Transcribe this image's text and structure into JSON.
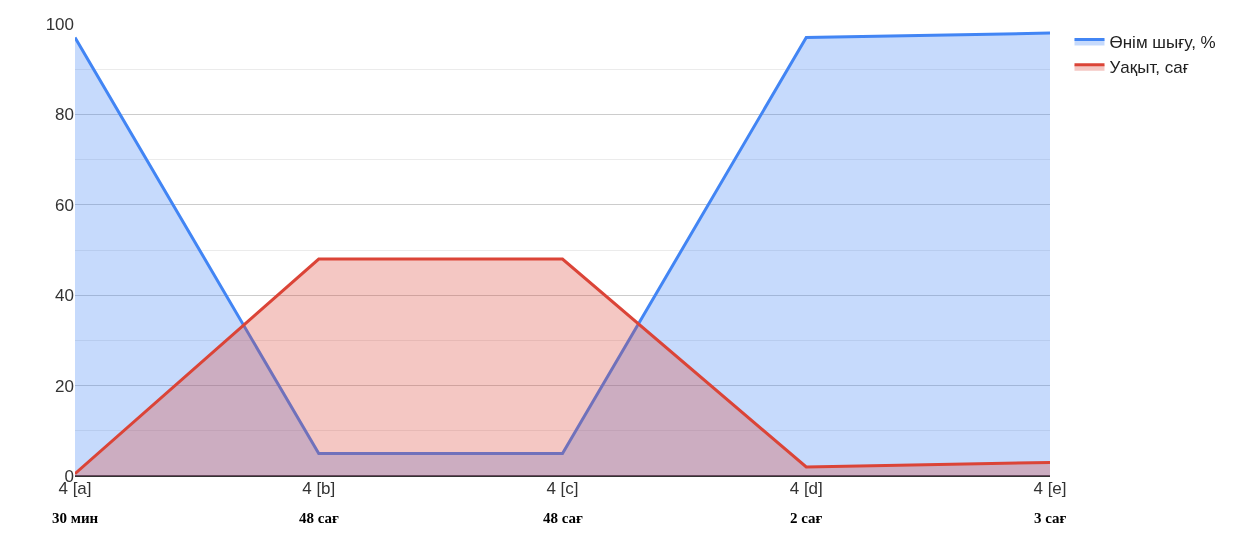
{
  "chart_data": {
    "type": "area",
    "categories": [
      "4 [a]",
      "4 [b]",
      "4 [c]",
      "4 [d]",
      "4 [e]"
    ],
    "series": [
      {
        "name": "Өнім шығу, %",
        "color": "#4285f4",
        "values": [
          97,
          5,
          5,
          97,
          98
        ]
      },
      {
        "name": "Уақыт, сағ",
        "color": "#db4437",
        "values": [
          0.5,
          48,
          48,
          2,
          3
        ]
      }
    ],
    "ylim": [
      0,
      100
    ],
    "yticks": [
      0,
      20,
      40,
      60,
      80,
      100
    ],
    "annotations": [
      "30 мин",
      "48 сағ",
      "48 сағ",
      "2 сағ",
      "3 сағ"
    ],
    "grid": true,
    "legend": "top right"
  }
}
